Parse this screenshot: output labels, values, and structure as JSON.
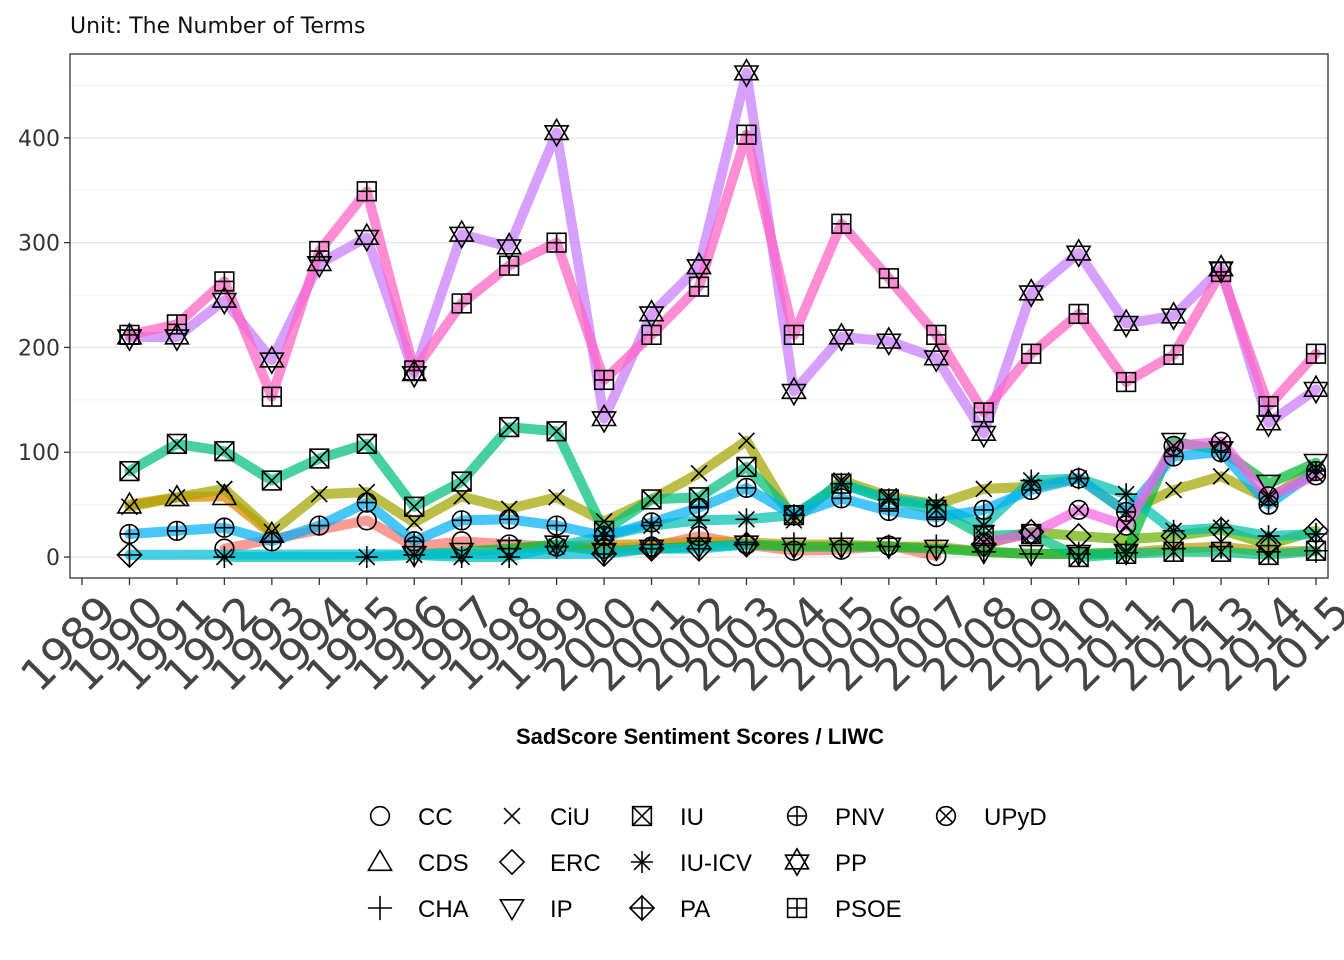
{
  "chart_data": {
    "type": "line",
    "subtitle": "Unit: The Number of Terms",
    "title": "",
    "xlabel": "SadScore Sentiment Scores / LIWC",
    "ylabel": "",
    "x_ticks": [
      "1989",
      "1990",
      "1991",
      "1992",
      "1993",
      "1994",
      "1995",
      "1996",
      "1997",
      "1998",
      "1999",
      "2000",
      "2001",
      "2002",
      "2003",
      "2004",
      "2005",
      "2006",
      "2007",
      "2008",
      "2009",
      "2010",
      "2011",
      "2012",
      "2013",
      "2014",
      "2015"
    ],
    "y_ticks": [
      0,
      100,
      200,
      300,
      400
    ],
    "xlim": [
      1989,
      2015
    ],
    "ylim": [
      -20,
      480
    ],
    "grid": true,
    "legend_position": "bottom",
    "series": [
      {
        "name": "CC",
        "marker": "circle",
        "color": "#F8766D",
        "x": [
          1992,
          1995,
          1996,
          1997,
          1998,
          1999,
          2000,
          2001,
          2002,
          2003,
          2004,
          2005,
          2006,
          2007
        ],
        "values": [
          8,
          35,
          10,
          15,
          12,
          10,
          8,
          10,
          20,
          12,
          6,
          7,
          11,
          1
        ]
      },
      {
        "name": "CDS",
        "marker": "triangle",
        "color": "#E58700",
        "x": [
          1990,
          1991,
          1992,
          1993
        ],
        "values": [
          50,
          57,
          58,
          22
        ]
      },
      {
        "name": "CHA",
        "marker": "plus",
        "color": "#C99800",
        "x": [
          1998,
          1999,
          2000,
          2001,
          2002,
          2003,
          2004,
          2005,
          2006,
          2007,
          2008,
          2009,
          2010,
          2011,
          2012,
          2013,
          2014,
          2015
        ],
        "values": [
          8,
          10,
          12,
          12,
          15,
          14,
          12,
          12,
          10,
          10,
          5,
          3,
          3,
          4,
          8,
          10,
          5,
          6
        ]
      },
      {
        "name": "CiU",
        "marker": "x",
        "color": "#A3A500",
        "x": [
          1990,
          1991,
          1992,
          1993,
          1994,
          1995,
          1996,
          1997,
          1998,
          1999,
          2000,
          2001,
          2002,
          2003,
          2004,
          2005,
          2006,
          2007,
          2008,
          2009,
          2010,
          2011,
          2012,
          2013,
          2014,
          2015
        ],
        "values": [
          48,
          57,
          65,
          24,
          60,
          62,
          33,
          58,
          46,
          57,
          34,
          55,
          80,
          111,
          35,
          73,
          58,
          50,
          65,
          67,
          75,
          43,
          64,
          77,
          55,
          85
        ]
      },
      {
        "name": "ERC",
        "marker": "diamond",
        "color": "#6BB100",
        "x": [
          2008,
          2009,
          2010,
          2011,
          2012,
          2013,
          2014,
          2015
        ],
        "values": [
          12,
          24,
          20,
          17,
          20,
          26,
          12,
          25
        ]
      },
      {
        "name": "IP",
        "marker": "triangle-down",
        "color": "#00BA38",
        "x": [
          1996,
          1997,
          1998,
          1999,
          2000,
          2001,
          2002,
          2003,
          2004,
          2005,
          2006,
          2007,
          2008,
          2009,
          2010,
          2011,
          2012,
          2013,
          2014,
          2015
        ],
        "values": [
          2,
          5,
          8,
          12,
          5,
          8,
          10,
          12,
          10,
          10,
          10,
          8,
          5,
          3,
          3,
          4,
          110,
          102,
          70,
          90
        ]
      },
      {
        "name": "IU",
        "marker": "box-x",
        "color": "#00BF7D",
        "x": [
          1990,
          1991,
          1992,
          1993,
          1994,
          1995,
          1996,
          1997,
          1998,
          1999,
          2000,
          2001,
          2002,
          2003,
          2004,
          2005,
          2006,
          2007,
          2008,
          2009,
          2010,
          2011,
          2012,
          2013,
          2014,
          2015
        ],
        "values": [
          82,
          108,
          101,
          73,
          94,
          108,
          48,
          72,
          124,
          120,
          25,
          55,
          57,
          86,
          40,
          70,
          55,
          45,
          20,
          22,
          0,
          3,
          5,
          5,
          2,
          6
        ]
      },
      {
        "name": "IU-ICV",
        "marker": "asterisk",
        "color": "#00C0AF",
        "x": [
          1992,
          1995,
          1996,
          1997,
          1998,
          1999,
          2000,
          2001,
          2002,
          2003,
          2004,
          2005,
          2006,
          2007,
          2008,
          2009,
          2010,
          2011,
          2012,
          2013,
          2014,
          2015
        ],
        "values": [
          0,
          0,
          2,
          0,
          0,
          10,
          20,
          30,
          35,
          36,
          40,
          70,
          55,
          50,
          30,
          73,
          75,
          60,
          25,
          28,
          20,
          22
        ]
      },
      {
        "name": "PA",
        "marker": "diamond-plus",
        "color": "#00BCD8",
        "x": [
          1990,
          2000,
          2001,
          2002,
          2003
        ],
        "values": [
          2,
          3,
          8,
          8,
          12
        ]
      },
      {
        "name": "PNV",
        "marker": "circle-plus",
        "color": "#00B0F6",
        "x": [
          1990,
          1991,
          1992,
          1993,
          1994,
          1995,
          1996,
          1997,
          1998,
          1999,
          2000,
          2001,
          2002,
          2003,
          2004,
          2005,
          2006,
          2007,
          2008,
          2009,
          2010,
          2011,
          2012,
          2013,
          2014,
          2015
        ],
        "values": [
          22,
          25,
          28,
          15,
          30,
          52,
          15,
          35,
          36,
          30,
          20,
          33,
          47,
          66,
          40,
          56,
          44,
          38,
          45,
          64,
          75,
          43,
          96,
          100,
          50,
          82
        ]
      },
      {
        "name": "PP",
        "marker": "star",
        "color": "#C77CFF",
        "x": [
          1990,
          1991,
          1992,
          1993,
          1994,
          1995,
          1996,
          1997,
          1998,
          1999,
          2000,
          2001,
          2002,
          2003,
          2004,
          2005,
          2006,
          2007,
          2008,
          2009,
          2010,
          2011,
          2012,
          2013,
          2014,
          2015
        ],
        "values": [
          210,
          210,
          245,
          188,
          280,
          305,
          175,
          308,
          296,
          405,
          132,
          232,
          277,
          462,
          158,
          210,
          206,
          190,
          118,
          252,
          290,
          223,
          230,
          275,
          128,
          160
        ]
      },
      {
        "name": "PSOE",
        "marker": "box-plus",
        "color": "#FF61C3",
        "x": [
          1990,
          1991,
          1992,
          1993,
          1994,
          1995,
          1996,
          1997,
          1998,
          1999,
          2000,
          2001,
          2002,
          2003,
          2004,
          2005,
          2006,
          2007,
          2008,
          2009,
          2010,
          2011,
          2012,
          2013,
          2014,
          2015
        ],
        "values": [
          212,
          222,
          263,
          153,
          292,
          349,
          178,
          242,
          278,
          300,
          169,
          212,
          258,
          403,
          212,
          318,
          266,
          212,
          138,
          194,
          232,
          167,
          193,
          272,
          144,
          194
        ]
      },
      {
        "name": "UPyD",
        "marker": "circle-x",
        "color": "#F564E3",
        "x": [
          2008,
          2009,
          2010,
          2011,
          2012,
          2013,
          2014,
          2015
        ],
        "values": [
          14,
          22,
          45,
          30,
          106,
          110,
          58,
          78
        ]
      }
    ]
  }
}
